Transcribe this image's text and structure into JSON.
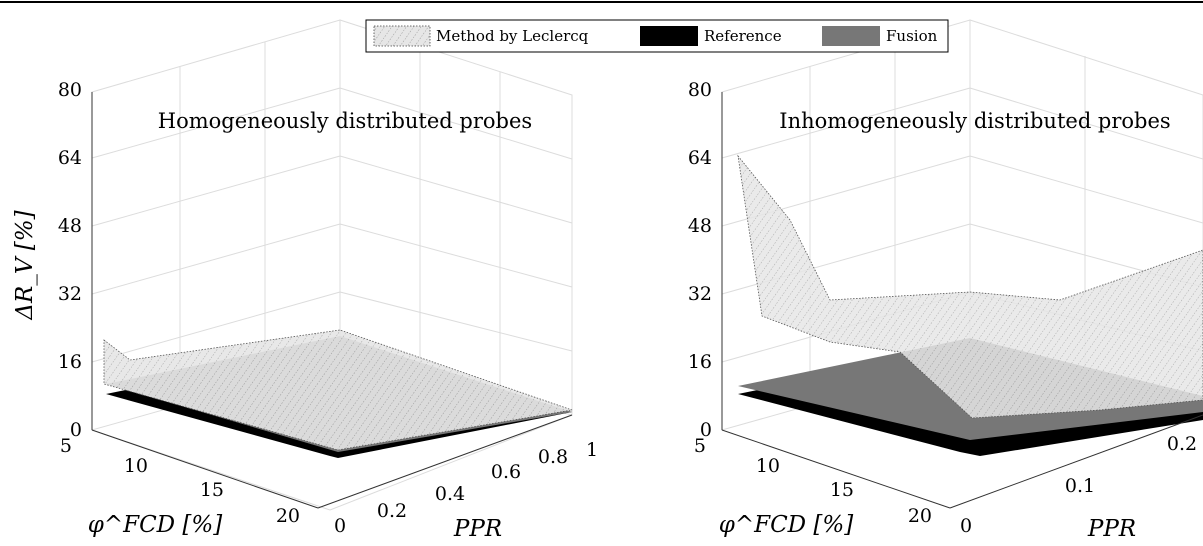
{
  "legend": {
    "items": [
      {
        "label": "Method by Leclercq",
        "color": "#e0e0e0",
        "pattern": "dotted"
      },
      {
        "label": "Reference",
        "color": "#000000"
      },
      {
        "label": "Fusion",
        "color": "#777777"
      }
    ]
  },
  "chart_data": [
    {
      "type": "surface",
      "title": "Homogeneously distributed probes",
      "zlabel": "ΔR_V [%]",
      "xlabel": "φ^FCD [%]",
      "ylabel": "PPR",
      "zlim": [
        0,
        80
      ],
      "zticks": [
        "0",
        "16",
        "32",
        "48",
        "64",
        "80"
      ],
      "xticks": [
        "5",
        "10",
        "15",
        "20"
      ],
      "yticks": [
        "0",
        "0.2",
        "0.4",
        "0.6",
        "0.8",
        "1"
      ],
      "grid": true,
      "series": [
        {
          "name": "Method by Leclercq",
          "values_at_phi": {
            "phi": [
              5,
              20
            ],
            "ppr0": [
              18,
              8
            ],
            "ppr1": [
              10,
              6
            ]
          }
        },
        {
          "name": "Reference",
          "values": 0
        },
        {
          "name": "Fusion",
          "values": 8
        }
      ]
    },
    {
      "type": "surface",
      "title": "Inhomogeneously distributed probes",
      "zlabel": "ΔR_V [%]",
      "xlabel": "φ^FCD [%]",
      "ylabel": "PPR",
      "zlim": [
        0,
        80
      ],
      "zticks": [
        "0",
        "16",
        "32",
        "48",
        "64",
        "80"
      ],
      "xticks": [
        "5",
        "10",
        "15",
        "20"
      ],
      "yticks": [
        "0",
        "0.1",
        "0.2"
      ],
      "grid": true,
      "series": [
        {
          "name": "Method by Leclercq",
          "values_at_phi": {
            "phi": [
              5,
              10,
              15,
              20
            ],
            "ppr0": [
              63,
              35,
              18,
              5
            ],
            "ppr_max": [
              20,
              24,
              22,
              14
            ]
          }
        },
        {
          "name": "Reference",
          "values": 0
        },
        {
          "name": "Fusion",
          "values": 8
        }
      ]
    }
  ]
}
